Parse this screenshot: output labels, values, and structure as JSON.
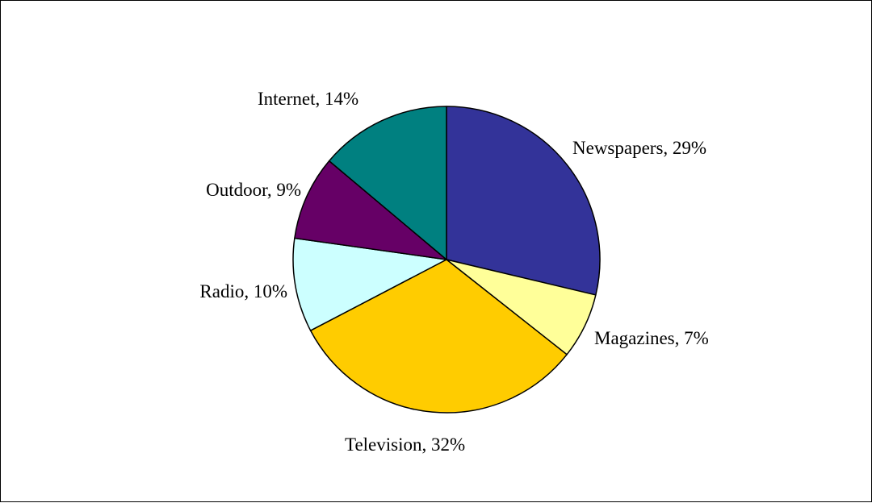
{
  "chart_data": {
    "type": "pie",
    "title": "",
    "start_angle_deg": 0,
    "direction": "clockwise",
    "slices": [
      {
        "name": "Newspapers",
        "value": 29,
        "label": "Newspapers, 29%",
        "color": "#333399"
      },
      {
        "name": "Magazines",
        "value": 7,
        "label": "Magazines, 7%",
        "color": "#FFFF99"
      },
      {
        "name": "Television",
        "value": 32,
        "label": "Television, 32%",
        "color": "#FFCC00"
      },
      {
        "name": "Radio",
        "value": 10,
        "label": "Radio, 10%",
        "color": "#CCFFFF"
      },
      {
        "name": "Outdoor",
        "value": 9,
        "label": "Outdoor, 9%",
        "color": "#660066"
      },
      {
        "name": "Internet",
        "value": 14,
        "label": "Internet, 14%",
        "color": "#008080"
      }
    ]
  }
}
